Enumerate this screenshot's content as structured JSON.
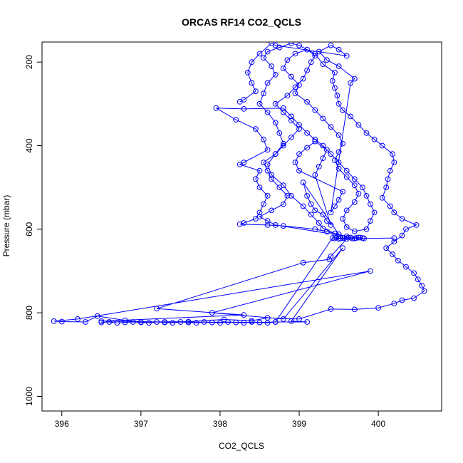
{
  "chart_data": {
    "type": "scatter",
    "title": "ORCAS RF14 CO2_QCLS",
    "xlabel": "CO2_QCLS",
    "ylabel": "Pressure (mbar)",
    "xlim": [
      395.75,
      400.8
    ],
    "ylim": [
      1035,
      152
    ],
    "y_reversed": true,
    "x_ticks": [
      396,
      397,
      398,
      399,
      400
    ],
    "x_tick_labels": [
      "396",
      "397",
      "398",
      "399",
      "400"
    ],
    "y_ticks": [
      200,
      400,
      600,
      800,
      1000
    ],
    "y_tick_labels": [
      "200",
      "400",
      "600",
      "800",
      "1000"
    ],
    "grid": false,
    "legend": "none",
    "marker": "open-circle",
    "connected": true,
    "color": "#0000ff",
    "points": [
      [
        399.65,
        620
      ],
      [
        399.55,
        621
      ],
      [
        399.7,
        622
      ],
      [
        399.5,
        623
      ],
      [
        399.8,
        621
      ],
      [
        399.45,
        622
      ],
      [
        399.75,
        620
      ],
      [
        399.6,
        623
      ],
      [
        399.4,
        665
      ],
      [
        399.38,
        672
      ],
      [
        399.05,
        680
      ],
      [
        397.2,
        790
      ],
      [
        398.3,
        805
      ],
      [
        396.5,
        820
      ],
      [
        397.3,
        822
      ],
      [
        398.5,
        823
      ],
      [
        398.7,
        822
      ],
      [
        399.1,
        822
      ],
      [
        398.9,
        820
      ],
      [
        399.55,
        645
      ],
      [
        398.8,
        815
      ],
      [
        397.9,
        800
      ],
      [
        399.9,
        700
      ],
      [
        396.2,
        815
      ],
      [
        395.9,
        820
      ],
      [
        396.0,
        821
      ],
      [
        396.3,
        822
      ],
      [
        396.45,
        808
      ],
      [
        396.8,
        818
      ],
      [
        397.0,
        822
      ],
      [
        397.6,
        821
      ],
      [
        398.05,
        816
      ],
      [
        398.4,
        819
      ],
      [
        398.6,
        812
      ],
      [
        399.0,
        815
      ],
      [
        399.4,
        791
      ],
      [
        399.7,
        792
      ],
      [
        400.0,
        788
      ],
      [
        400.2,
        778
      ],
      [
        400.3,
        770
      ],
      [
        400.45,
        765
      ],
      [
        400.58,
        748
      ],
      [
        400.55,
        735
      ],
      [
        400.5,
        720
      ],
      [
        400.45,
        705
      ],
      [
        400.35,
        690
      ],
      [
        400.25,
        675
      ],
      [
        400.18,
        660
      ],
      [
        400.1,
        645
      ],
      [
        400.2,
        630
      ],
      [
        400.3,
        615
      ],
      [
        400.35,
        600
      ],
      [
        400.48,
        590
      ],
      [
        400.3,
        575
      ],
      [
        400.2,
        560
      ],
      [
        400.15,
        545
      ],
      [
        400.05,
        525
      ],
      [
        400.1,
        500
      ],
      [
        400.12,
        480
      ],
      [
        400.15,
        460
      ],
      [
        400.2,
        440
      ],
      [
        400.18,
        420
      ],
      [
        400.05,
        400
      ],
      [
        399.95,
        385
      ],
      [
        399.85,
        370
      ],
      [
        399.75,
        350
      ],
      [
        399.65,
        330
      ],
      [
        399.55,
        315
      ],
      [
        399.5,
        300
      ],
      [
        399.48,
        280
      ],
      [
        399.45,
        262
      ],
      [
        399.42,
        245
      ],
      [
        399.45,
        225
      ],
      [
        399.3,
        205
      ],
      [
        399.2,
        180
      ],
      [
        399.0,
        160
      ],
      [
        398.9,
        155
      ],
      [
        398.75,
        165
      ],
      [
        398.6,
        175
      ],
      [
        398.55,
        190
      ],
      [
        398.65,
        210
      ],
      [
        398.7,
        230
      ],
      [
        398.6,
        250
      ],
      [
        398.55,
        275
      ],
      [
        398.5,
        300
      ],
      [
        398.6,
        320
      ],
      [
        398.7,
        345
      ],
      [
        398.75,
        370
      ],
      [
        398.8,
        395
      ],
      [
        398.7,
        420
      ],
      [
        398.6,
        445
      ],
      [
        398.65,
        470
      ],
      [
        398.8,
        495
      ],
      [
        398.9,
        520
      ],
      [
        399.05,
        545
      ],
      [
        399.15,
        565
      ],
      [
        399.25,
        585
      ],
      [
        399.3,
        598
      ],
      [
        399.45,
        610
      ],
      [
        399.6,
        617
      ],
      [
        398.7,
        590
      ],
      [
        398.6,
        580
      ],
      [
        398.5,
        570
      ],
      [
        398.65,
        555
      ],
      [
        398.8,
        540
      ],
      [
        398.85,
        520
      ],
      [
        398.75,
        500
      ],
      [
        398.65,
        480
      ],
      [
        398.6,
        460
      ],
      [
        398.55,
        440
      ],
      [
        398.7,
        420
      ],
      [
        398.8,
        400
      ],
      [
        398.9,
        380
      ],
      [
        399.0,
        360
      ],
      [
        398.9,
        340
      ],
      [
        398.8,
        320
      ],
      [
        398.7,
        300
      ],
      [
        398.85,
        280
      ],
      [
        398.95,
        260
      ],
      [
        399.05,
        240
      ],
      [
        399.1,
        220
      ],
      [
        399.15,
        200
      ],
      [
        399.2,
        185
      ],
      [
        399.1,
        170
      ],
      [
        398.95,
        180
      ],
      [
        398.85,
        195
      ],
      [
        398.8,
        215
      ],
      [
        398.9,
        235
      ],
      [
        399.0,
        255
      ],
      [
        398.95,
        275
      ],
      [
        399.1,
        295
      ],
      [
        399.2,
        315
      ],
      [
        399.3,
        335
      ],
      [
        399.4,
        355
      ],
      [
        399.5,
        375
      ],
      [
        399.55,
        395
      ],
      [
        399.5,
        415
      ],
      [
        399.45,
        435
      ],
      [
        399.5,
        455
      ],
      [
        399.6,
        475
      ],
      [
        399.7,
        495
      ],
      [
        399.75,
        515
      ],
      [
        399.7,
        535
      ],
      [
        399.6,
        555
      ],
      [
        399.55,
        575
      ],
      [
        399.6,
        595
      ],
      [
        399.7,
        605
      ],
      [
        399.85,
        600
      ],
      [
        399.9,
        580
      ],
      [
        399.95,
        560
      ],
      [
        399.9,
        540
      ],
      [
        399.85,
        520
      ],
      [
        399.8,
        500
      ],
      [
        399.7,
        480
      ],
      [
        399.6,
        460
      ],
      [
        399.5,
        440
      ],
      [
        399.4,
        420
      ],
      [
        399.3,
        400
      ],
      [
        399.2,
        385
      ],
      [
        399.1,
        370
      ],
      [
        399.0,
        350
      ],
      [
        398.9,
        330
      ],
      [
        398.8,
        310
      ],
      [
        398.3,
        312
      ],
      [
        397.95,
        310
      ],
      [
        398.2,
        338
      ],
      [
        398.45,
        360
      ],
      [
        398.55,
        385
      ],
      [
        398.6,
        410
      ],
      [
        398.3,
        440
      ],
      [
        398.25,
        445
      ],
      [
        398.5,
        460
      ],
      [
        398.45,
        480
      ],
      [
        398.5,
        500
      ],
      [
        398.6,
        520
      ],
      [
        398.55,
        540
      ],
      [
        398.5,
        560
      ],
      [
        398.45,
        575
      ],
      [
        398.3,
        585
      ],
      [
        398.25,
        588
      ],
      [
        398.6,
        590
      ],
      [
        398.8,
        592
      ],
      [
        399.2,
        600
      ],
      [
        399.35,
        606
      ],
      [
        399.5,
        612
      ],
      [
        399.05,
        488
      ],
      [
        399.1,
        520
      ],
      [
        399.15,
        540
      ],
      [
        399.2,
        555
      ],
      [
        399.3,
        565
      ],
      [
        399.35,
        580
      ],
      [
        399.4,
        590
      ],
      [
        399.2,
        470
      ],
      [
        399.25,
        450
      ],
      [
        399.3,
        430
      ],
      [
        399.35,
        410
      ],
      [
        399.2,
        390
      ],
      [
        399.1,
        405
      ],
      [
        399.0,
        420
      ],
      [
        398.95,
        440
      ],
      [
        399.0,
        460
      ],
      [
        399.55,
        510
      ],
      [
        399.5,
        530
      ],
      [
        399.45,
        545
      ],
      [
        399.4,
        560
      ],
      [
        399.65,
        250
      ],
      [
        399.7,
        240
      ],
      [
        399.5,
        210
      ],
      [
        399.35,
        195
      ],
      [
        399.25,
        175
      ],
      [
        399.4,
        160
      ],
      [
        399.5,
        170
      ],
      [
        399.6,
        185
      ],
      [
        398.7,
        160
      ],
      [
        398.65,
        155
      ],
      [
        398.5,
        180
      ],
      [
        398.4,
        200
      ],
      [
        398.35,
        225
      ],
      [
        398.4,
        250
      ],
      [
        398.45,
        270
      ],
      [
        398.3,
        290
      ],
      [
        398.25,
        295
      ]
    ],
    "cluster_points": [
      [
        396.5,
        823
      ],
      [
        396.6,
        822
      ],
      [
        396.7,
        824
      ],
      [
        396.8,
        823
      ],
      [
        396.9,
        822
      ],
      [
        397.0,
        823
      ],
      [
        397.1,
        824
      ],
      [
        397.2,
        822
      ],
      [
        397.3,
        823
      ],
      [
        397.4,
        824
      ],
      [
        397.5,
        822
      ],
      [
        397.6,
        823
      ],
      [
        397.7,
        824
      ],
      [
        397.8,
        822
      ],
      [
        397.9,
        823
      ],
      [
        398.0,
        824
      ],
      [
        398.1,
        822
      ],
      [
        398.2,
        823
      ],
      [
        398.3,
        824
      ],
      [
        398.4,
        822
      ],
      [
        398.5,
        823
      ],
      [
        398.6,
        824
      ],
      [
        398.7,
        822
      ],
      [
        399.42,
        621
      ],
      [
        399.47,
        620
      ],
      [
        399.52,
        622
      ],
      [
        399.57,
        621
      ],
      [
        399.62,
        620
      ],
      [
        399.67,
        622
      ],
      [
        399.72,
        621
      ],
      [
        399.77,
        620
      ],
      [
        399.82,
        622
      ],
      [
        400.2,
        621
      ]
    ]
  }
}
